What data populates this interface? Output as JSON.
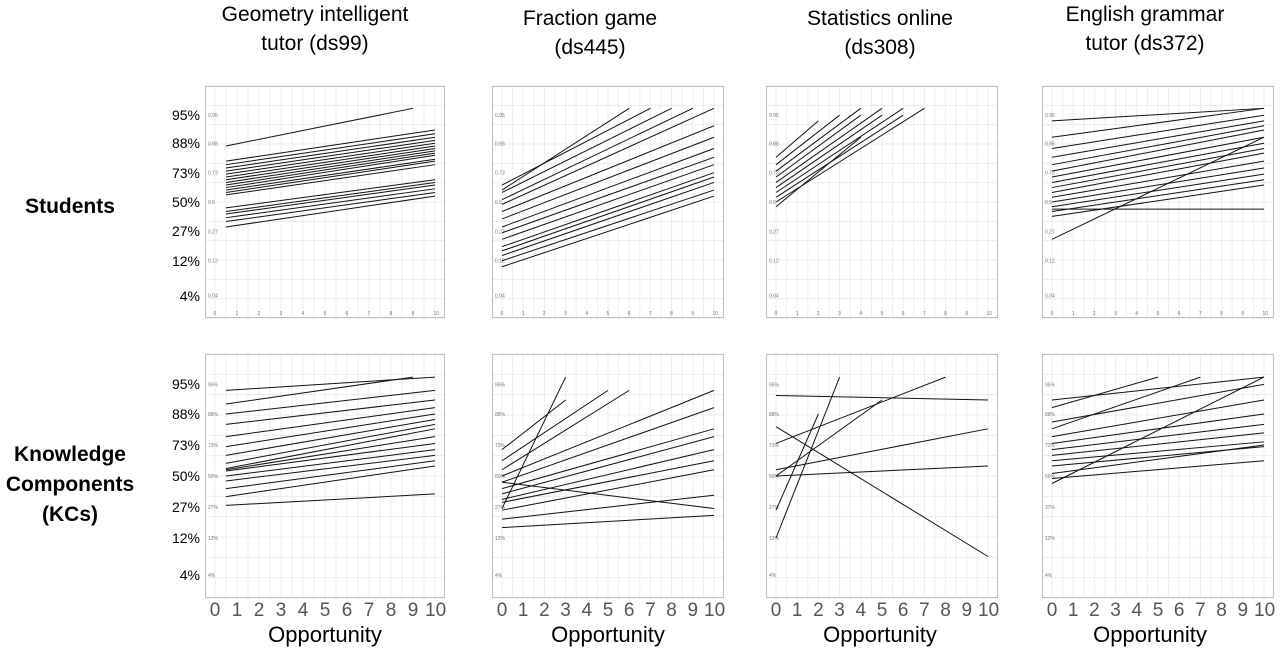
{
  "columns": [
    {
      "title": "Geometry intelligent\ntutor (ds99)"
    },
    {
      "title": "Fraction game\n(ds445)"
    },
    {
      "title": "Statistics online\n(ds308)"
    },
    {
      "title": "English grammar\ntutor (ds372)"
    }
  ],
  "rows": [
    {
      "title": "Students"
    },
    {
      "title": "Knowledge\nComponents\n(KCs)"
    }
  ],
  "y_ticks_outer": [
    "95%",
    "88%",
    "73%",
    "50%",
    "27%",
    "12%",
    "4%"
  ],
  "y_ticks_inner_students": [
    "0.95",
    "0.88",
    "0.73",
    "0.5",
    "0.27",
    "0.12",
    "0.04"
  ],
  "y_ticks_inner_kcs": [
    "95%",
    "88%",
    "73%",
    "50%",
    "27%",
    "12%",
    "4%"
  ],
  "x_ticks": [
    "0",
    "1",
    "2",
    "3",
    "4",
    "5",
    "6",
    "7",
    "8",
    "9",
    "10"
  ],
  "xlabel": "Opportunity",
  "chart_data": [
    {
      "type": "line",
      "panel": "Geometry intelligent tutor (ds99) - Students",
      "xlim": [
        0,
        10
      ],
      "ylabel_ticks": [
        0.04,
        0.12,
        0.27,
        0.5,
        0.73,
        0.88,
        0.95
      ],
      "y_scale": "logit",
      "grid": true,
      "series": [
        {
          "x": [
            0.5,
            9
          ],
          "y": [
            0.87,
            0.96
          ]
        },
        {
          "x": [
            0.5,
            10
          ],
          "y": [
            0.8,
            0.92
          ]
        },
        {
          "x": [
            0.5,
            10
          ],
          "y": [
            0.78,
            0.91
          ]
        },
        {
          "x": [
            0.5,
            10
          ],
          "y": [
            0.76,
            0.9
          ]
        },
        {
          "x": [
            0.5,
            10
          ],
          "y": [
            0.74,
            0.89
          ]
        },
        {
          "x": [
            0.5,
            10
          ],
          "y": [
            0.72,
            0.88
          ]
        },
        {
          "x": [
            0.5,
            10
          ],
          "y": [
            0.7,
            0.87
          ]
        },
        {
          "x": [
            0.5,
            10
          ],
          "y": [
            0.68,
            0.86
          ]
        },
        {
          "x": [
            0.5,
            10
          ],
          "y": [
            0.66,
            0.85
          ]
        },
        {
          "x": [
            0.5,
            10
          ],
          "y": [
            0.64,
            0.84
          ]
        },
        {
          "x": [
            0.5,
            10
          ],
          "y": [
            0.62,
            0.83
          ]
        },
        {
          "x": [
            0.5,
            10
          ],
          "y": [
            0.6,
            0.81
          ]
        },
        {
          "x": [
            0.5,
            10
          ],
          "y": [
            0.58,
            0.8
          ]
        },
        {
          "x": [
            0.5,
            10
          ],
          "y": [
            0.56,
            0.78
          ]
        },
        {
          "x": [
            0.5,
            10
          ],
          "y": [
            0.45,
            0.68
          ]
        },
        {
          "x": [
            0.5,
            10
          ],
          "y": [
            0.42,
            0.66
          ]
        },
        {
          "x": [
            0.5,
            10
          ],
          "y": [
            0.4,
            0.64
          ]
        },
        {
          "x": [
            0.5,
            10
          ],
          "y": [
            0.37,
            0.61
          ]
        },
        {
          "x": [
            0.5,
            10
          ],
          "y": [
            0.34,
            0.58
          ]
        },
        {
          "x": [
            0.5,
            10
          ],
          "y": [
            0.3,
            0.55
          ]
        }
      ]
    },
    {
      "type": "line",
      "panel": "Fraction game (ds445) - Students",
      "xlim": [
        0,
        10
      ],
      "ylabel_ticks": [
        0.04,
        0.12,
        0.27,
        0.5,
        0.73,
        0.88,
        0.95
      ],
      "y_scale": "logit",
      "grid": true,
      "series": [
        {
          "x": [
            0,
            6
          ],
          "y": [
            0.6,
            0.96
          ]
        },
        {
          "x": [
            0,
            7
          ],
          "y": [
            0.64,
            0.96
          ]
        },
        {
          "x": [
            0,
            8
          ],
          "y": [
            0.58,
            0.96
          ]
        },
        {
          "x": [
            0,
            9
          ],
          "y": [
            0.52,
            0.96
          ]
        },
        {
          "x": [
            0,
            10
          ],
          "y": [
            0.48,
            0.96
          ]
        },
        {
          "x": [
            0,
            10
          ],
          "y": [
            0.42,
            0.93
          ]
        },
        {
          "x": [
            0,
            10
          ],
          "y": [
            0.36,
            0.9
          ]
        },
        {
          "x": [
            0,
            10
          ],
          "y": [
            0.3,
            0.86
          ]
        },
        {
          "x": [
            0,
            10
          ],
          "y": [
            0.26,
            0.82
          ]
        },
        {
          "x": [
            0,
            10
          ],
          "y": [
            0.22,
            0.78
          ]
        },
        {
          "x": [
            0,
            10
          ],
          "y": [
            0.18,
            0.73
          ]
        },
        {
          "x": [
            0,
            10
          ],
          "y": [
            0.16,
            0.7
          ]
        },
        {
          "x": [
            0,
            10
          ],
          "y": [
            0.14,
            0.66
          ]
        },
        {
          "x": [
            0,
            10
          ],
          "y": [
            0.12,
            0.6
          ]
        },
        {
          "x": [
            0,
            10
          ],
          "y": [
            0.1,
            0.55
          ]
        }
      ]
    },
    {
      "type": "line",
      "panel": "Statistics online (ds308) - Students",
      "xlim": [
        0,
        10
      ],
      "ylabel_ticks": [
        0.04,
        0.12,
        0.27,
        0.5,
        0.73,
        0.88,
        0.95
      ],
      "y_scale": "logit",
      "grid": true,
      "series": [
        {
          "x": [
            0,
            2
          ],
          "y": [
            0.82,
            0.94
          ]
        },
        {
          "x": [
            0,
            3
          ],
          "y": [
            0.78,
            0.95
          ]
        },
        {
          "x": [
            0,
            4
          ],
          "y": [
            0.74,
            0.96
          ]
        },
        {
          "x": [
            0,
            4
          ],
          "y": [
            0.7,
            0.95
          ]
        },
        {
          "x": [
            0,
            5
          ],
          "y": [
            0.66,
            0.96
          ]
        },
        {
          "x": [
            0,
            5
          ],
          "y": [
            0.62,
            0.95
          ]
        },
        {
          "x": [
            0,
            6
          ],
          "y": [
            0.58,
            0.96
          ]
        },
        {
          "x": [
            0,
            6
          ],
          "y": [
            0.54,
            0.95
          ]
        },
        {
          "x": [
            0,
            7
          ],
          "y": [
            0.5,
            0.96
          ]
        },
        {
          "x": [
            0,
            4
          ],
          "y": [
            0.46,
            0.9
          ]
        }
      ]
    },
    {
      "type": "line",
      "panel": "English grammar tutor (ds372) - Students",
      "xlim": [
        0,
        10
      ],
      "ylabel_ticks": [
        0.04,
        0.12,
        0.27,
        0.5,
        0.73,
        0.88,
        0.95
      ],
      "y_scale": "logit",
      "grid": true,
      "series": [
        {
          "x": [
            0,
            10
          ],
          "y": [
            0.94,
            0.96
          ]
        },
        {
          "x": [
            0,
            10
          ],
          "y": [
            0.9,
            0.96
          ]
        },
        {
          "x": [
            0,
            10
          ],
          "y": [
            0.86,
            0.95
          ]
        },
        {
          "x": [
            0,
            10
          ],
          "y": [
            0.82,
            0.94
          ]
        },
        {
          "x": [
            0,
            10
          ],
          "y": [
            0.78,
            0.93
          ]
        },
        {
          "x": [
            0,
            10
          ],
          "y": [
            0.74,
            0.92
          ]
        },
        {
          "x": [
            0,
            10
          ],
          "y": [
            0.7,
            0.9
          ]
        },
        {
          "x": [
            0,
            10
          ],
          "y": [
            0.66,
            0.88
          ]
        },
        {
          "x": [
            0,
            10
          ],
          "y": [
            0.62,
            0.86
          ]
        },
        {
          "x": [
            0,
            10
          ],
          "y": [
            0.58,
            0.84
          ]
        },
        {
          "x": [
            0,
            10
          ],
          "y": [
            0.54,
            0.8
          ]
        },
        {
          "x": [
            0,
            10
          ],
          "y": [
            0.5,
            0.76
          ]
        },
        {
          "x": [
            0,
            10
          ],
          "y": [
            0.46,
            0.72
          ]
        },
        {
          "x": [
            0,
            10
          ],
          "y": [
            0.42,
            0.68
          ]
        },
        {
          "x": [
            0,
            10
          ],
          "y": [
            0.38,
            0.64
          ]
        },
        {
          "x": [
            0,
            10
          ],
          "y": [
            0.44,
            0.44
          ]
        },
        {
          "x": [
            0,
            10
          ],
          "y": [
            0.22,
            0.9
          ]
        }
      ]
    },
    {
      "type": "line",
      "panel": "Geometry intelligent tutor (ds99) - KCs",
      "xlim": [
        0,
        10
      ],
      "ylabel_ticks": [
        0.04,
        0.12,
        0.27,
        0.5,
        0.73,
        0.88,
        0.95
      ],
      "y_scale": "logit",
      "grid": true,
      "series": [
        {
          "x": [
            0.5,
            9
          ],
          "y": [
            0.91,
            0.96
          ]
        },
        {
          "x": [
            0.5,
            10
          ],
          "y": [
            0.94,
            0.96
          ]
        },
        {
          "x": [
            0.5,
            10
          ],
          "y": [
            0.88,
            0.94
          ]
        },
        {
          "x": [
            0.5,
            10
          ],
          "y": [
            0.84,
            0.92
          ]
        },
        {
          "x": [
            0.5,
            10
          ],
          "y": [
            0.78,
            0.9
          ]
        },
        {
          "x": [
            0.5,
            10
          ],
          "y": [
            0.72,
            0.88
          ]
        },
        {
          "x": [
            0.5,
            10
          ],
          "y": [
            0.66,
            0.86
          ]
        },
        {
          "x": [
            0.5,
            10
          ],
          "y": [
            0.6,
            0.84
          ]
        },
        {
          "x": [
            0.5,
            10
          ],
          "y": [
            0.56,
            0.82
          ]
        },
        {
          "x": [
            0.5,
            10
          ],
          "y": [
            0.55,
            0.78
          ]
        },
        {
          "x": [
            0.5,
            10
          ],
          "y": [
            0.54,
            0.74
          ]
        },
        {
          "x": [
            0.5,
            10
          ],
          "y": [
            0.5,
            0.7
          ]
        },
        {
          "x": [
            0.5,
            10
          ],
          "y": [
            0.46,
            0.66
          ]
        },
        {
          "x": [
            0.5,
            10
          ],
          "y": [
            0.4,
            0.62
          ]
        },
        {
          "x": [
            0.5,
            10
          ],
          "y": [
            0.34,
            0.58
          ]
        },
        {
          "x": [
            0.5,
            10
          ],
          "y": [
            0.28,
            0.36
          ]
        }
      ]
    },
    {
      "type": "line",
      "panel": "Fraction game (ds445) - KCs",
      "xlim": [
        0,
        10
      ],
      "ylabel_ticks": [
        0.04,
        0.12,
        0.27,
        0.5,
        0.73,
        0.88,
        0.95
      ],
      "y_scale": "logit",
      "grid": true,
      "series": [
        {
          "x": [
            0,
            3
          ],
          "y": [
            0.26,
            0.96
          ]
        },
        {
          "x": [
            0,
            5
          ],
          "y": [
            0.62,
            0.94
          ]
        },
        {
          "x": [
            0,
            6
          ],
          "y": [
            0.55,
            0.94
          ]
        },
        {
          "x": [
            0,
            3
          ],
          "y": [
            0.7,
            0.92
          ]
        },
        {
          "x": [
            0,
            10
          ],
          "y": [
            0.5,
            0.94
          ]
        },
        {
          "x": [
            0,
            10
          ],
          "y": [
            0.45,
            0.9
          ]
        },
        {
          "x": [
            0,
            10
          ],
          "y": [
            0.4,
            0.82
          ]
        },
        {
          "x": [
            0,
            10
          ],
          "y": [
            0.36,
            0.78
          ]
        },
        {
          "x": [
            0,
            10
          ],
          "y": [
            0.32,
            0.7
          ]
        },
        {
          "x": [
            0,
            10
          ],
          "y": [
            0.3,
            0.62
          ]
        },
        {
          "x": [
            0,
            10
          ],
          "y": [
            0.25,
            0.55
          ]
        },
        {
          "x": [
            0,
            10
          ],
          "y": [
            0.45,
            0.26
          ]
        },
        {
          "x": [
            0,
            10
          ],
          "y": [
            0.2,
            0.35
          ]
        },
        {
          "x": [
            0,
            10
          ],
          "y": [
            0.16,
            0.22
          ]
        }
      ]
    },
    {
      "type": "line",
      "panel": "Statistics online (ds308) - KCs",
      "xlim": [
        0,
        10
      ],
      "ylabel_ticks": [
        0.04,
        0.12,
        0.27,
        0.5,
        0.73,
        0.88,
        0.95
      ],
      "y_scale": "logit",
      "grid": true,
      "series": [
        {
          "x": [
            0,
            10
          ],
          "y": [
            0.93,
            0.92
          ]
        },
        {
          "x": [
            0,
            10
          ],
          "y": [
            0.83,
            0.07
          ]
        },
        {
          "x": [
            0,
            8
          ],
          "y": [
            0.74,
            0.96
          ]
        },
        {
          "x": [
            0,
            10
          ],
          "y": [
            0.55,
            0.82
          ]
        },
        {
          "x": [
            0,
            10
          ],
          "y": [
            0.5,
            0.58
          ]
        },
        {
          "x": [
            0,
            3
          ],
          "y": [
            0.12,
            0.96
          ]
        },
        {
          "x": [
            0,
            2
          ],
          "y": [
            0.25,
            0.88
          ]
        },
        {
          "x": [
            0,
            5
          ],
          "y": [
            0.5,
            0.92
          ]
        }
      ]
    },
    {
      "type": "line",
      "panel": "English grammar tutor (ds372) - KCs",
      "xlim": [
        0,
        10
      ],
      "ylabel_ticks": [
        0.04,
        0.12,
        0.27,
        0.5,
        0.73,
        0.88,
        0.95
      ],
      "y_scale": "logit",
      "grid": true,
      "series": [
        {
          "x": [
            0,
            10
          ],
          "y": [
            0.92,
            0.96
          ]
        },
        {
          "x": [
            0,
            5
          ],
          "y": [
            0.9,
            0.96
          ]
        },
        {
          "x": [
            0,
            10
          ],
          "y": [
            0.85,
            0.95
          ]
        },
        {
          "x": [
            0,
            7
          ],
          "y": [
            0.82,
            0.96
          ]
        },
        {
          "x": [
            0,
            10
          ],
          "y": [
            0.78,
            0.92
          ]
        },
        {
          "x": [
            0,
            10
          ],
          "y": [
            0.74,
            0.88
          ]
        },
        {
          "x": [
            0,
            10
          ],
          "y": [
            0.7,
            0.84
          ]
        },
        {
          "x": [
            0,
            10
          ],
          "y": [
            0.66,
            0.8
          ]
        },
        {
          "x": [
            0,
            10
          ],
          "y": [
            0.62,
            0.75
          ]
        },
        {
          "x": [
            0,
            10
          ],
          "y": [
            0.58,
            0.72
          ]
        },
        {
          "x": [
            0,
            10
          ],
          "y": [
            0.52,
            0.73
          ]
        },
        {
          "x": [
            0,
            10
          ],
          "y": [
            0.48,
            0.62
          ]
        },
        {
          "x": [
            0,
            10
          ],
          "y": [
            0.44,
            0.96
          ]
        }
      ]
    }
  ]
}
